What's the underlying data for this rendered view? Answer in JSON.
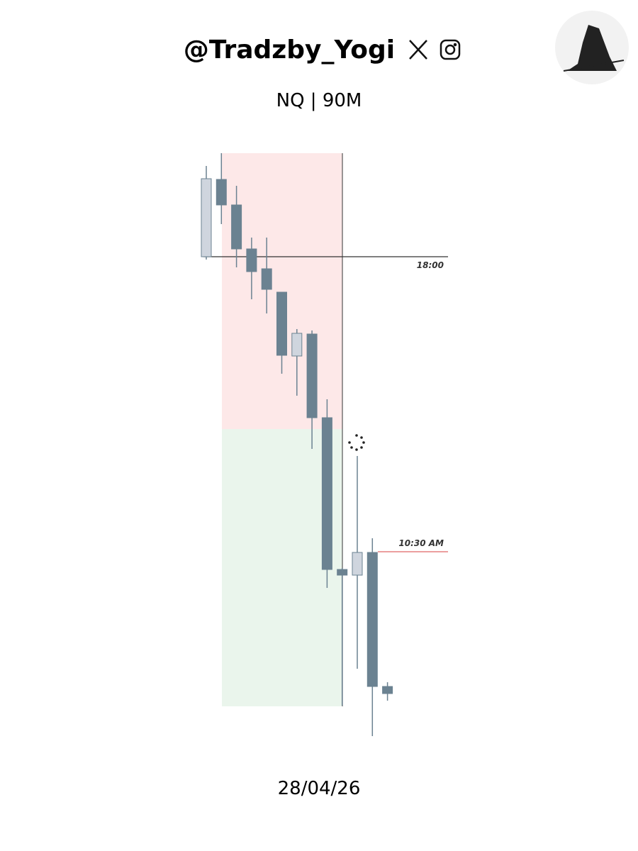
{
  "chart_data": {
    "type": "candlestick",
    "title": "@Tradzby_Yogi",
    "subtitle": "NQ | 90M",
    "date": "28/04/26",
    "open": [
      698,
      807,
      771,
      709,
      681,
      648,
      558,
      589,
      471,
      257,
      249,
      281,
      92
    ],
    "high": [
      826,
      844,
      798,
      725,
      725,
      648,
      596,
      594,
      497,
      259,
      417,
      301,
      98
    ],
    "low": [
      694,
      744,
      683,
      638,
      618,
      533,
      502,
      427,
      231,
      65,
      117,
      22,
      72
    ],
    "close": [
      808,
      771,
      709,
      677,
      652,
      559,
      590,
      471,
      257,
      249,
      281,
      92,
      82
    ],
    "up_color": "#cfd5de",
    "down_color": "#6b8291",
    "zones": [
      {
        "from": 455,
        "to": 844,
        "color": "#fde8e8"
      },
      {
        "from": 64,
        "to": 455,
        "color": "#eaf5ec"
      }
    ],
    "levels": [
      {
        "value": 698,
        "label": "18:00",
        "color": "#333333"
      },
      {
        "value": 282,
        "label": "10:30 AM",
        "color": "#e06666"
      }
    ],
    "ylim": [
      0,
      860
    ]
  }
}
